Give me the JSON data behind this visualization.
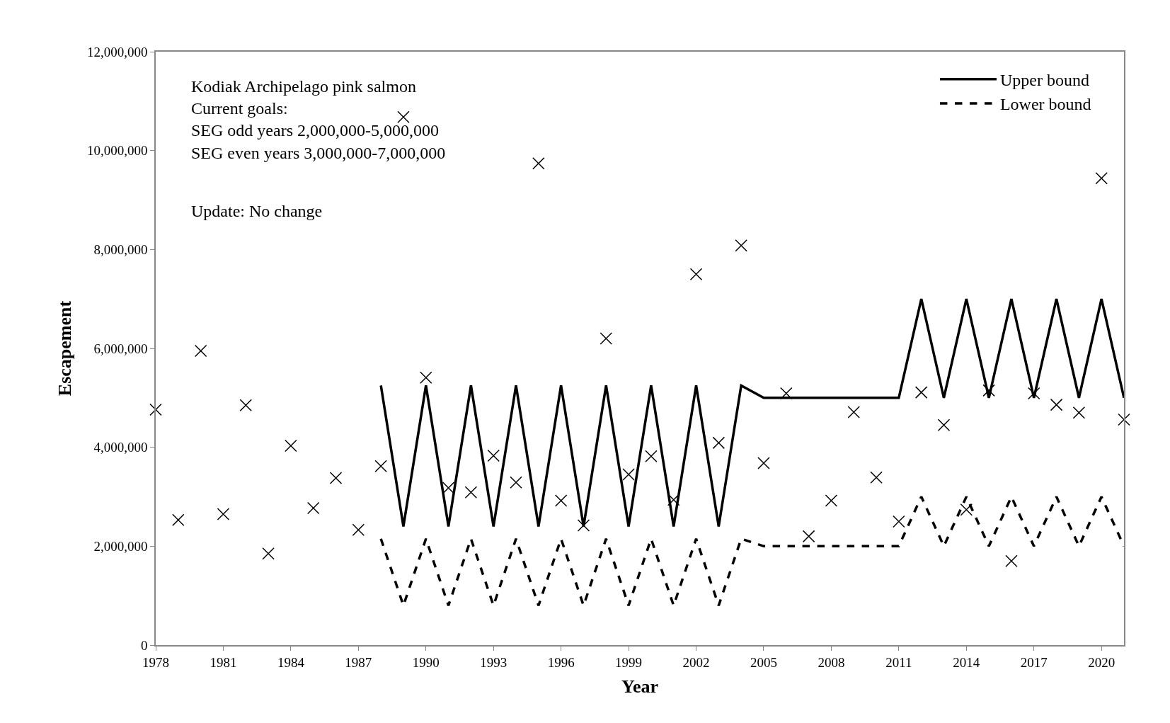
{
  "chart_data": {
    "type": "scatter",
    "xlabel": "Year",
    "ylabel": "Escapement",
    "x": [
      1978,
      1979,
      1980,
      1981,
      1982,
      1983,
      1984,
      1985,
      1986,
      1987,
      1988,
      1989,
      1990,
      1991,
      1992,
      1993,
      1994,
      1995,
      1996,
      1997,
      1998,
      1999,
      2000,
      2001,
      2002,
      2003,
      2004,
      2005,
      2006,
      2007,
      2008,
      2009,
      2010,
      2011,
      2012,
      2013,
      2014,
      2015,
      2016,
      2017,
      2018,
      2019,
      2020,
      2021
    ],
    "series": [
      {
        "color": "#000000",
        "marker": "cross",
        "values": [
          4760000,
          2530000,
          5950000,
          2650000,
          4850000,
          1850000,
          4030000,
          2770000,
          3380000,
          2330000,
          3620000,
          10680000,
          5410000,
          3180000,
          3090000,
          3830000,
          3290000,
          9740000,
          2920000,
          2420000,
          6200000,
          3450000,
          3820000,
          2940000,
          7500000,
          4090000,
          8080000,
          3680000,
          5090000,
          2200000,
          2920000,
          4710000,
          3390000,
          2500000,
          5110000,
          4450000,
          2740000,
          5150000,
          1700000,
          5090000,
          4860000,
          4700000,
          9440000,
          4560000
        ]
      },
      {
        "type": "line",
        "name": "Upper bound",
        "color": "#000000",
        "line_style": "solid",
        "marker": "none",
        "values": [
          null,
          null,
          null,
          null,
          null,
          null,
          null,
          null,
          null,
          null,
          5250000,
          2400000,
          5250000,
          2400000,
          5250000,
          2400000,
          5250000,
          2400000,
          5250000,
          2400000,
          5250000,
          2400000,
          5250000,
          2400000,
          5250000,
          2400000,
          5250000,
          5000000,
          5000000,
          5000000,
          5000000,
          5000000,
          5000000,
          5000000,
          7000000,
          5000000,
          7000000,
          5000000,
          7000000,
          5000000,
          7000000,
          5000000,
          7000000,
          5000000
        ]
      },
      {
        "type": "line",
        "name": "Lower bound",
        "color": "#000000",
        "line_style": "dashed",
        "marker": "none",
        "values": [
          null,
          null,
          null,
          null,
          null,
          null,
          null,
          null,
          null,
          null,
          2150000,
          800000,
          2150000,
          800000,
          2150000,
          800000,
          2150000,
          800000,
          2150000,
          800000,
          2150000,
          800000,
          2150000,
          800000,
          2150000,
          800000,
          2150000,
          2000000,
          2000000,
          2000000,
          2000000,
          2000000,
          2000000,
          2000000,
          3000000,
          2000000,
          3000000,
          2000000,
          3000000,
          2000000,
          3000000,
          2000000,
          3000000,
          2000000
        ]
      }
    ],
    "xlim": [
      1978,
      2021
    ],
    "xticks": [
      1978,
      1981,
      1984,
      1987,
      1990,
      1993,
      1996,
      1999,
      2002,
      2005,
      2008,
      2011,
      2014,
      2017,
      2020
    ],
    "ylim": [
      0,
      12000000
    ],
    "yticks": [
      {
        "value": 0,
        "label": "0"
      },
      {
        "value": 2000000,
        "label": "2,000,000"
      },
      {
        "value": 4000000,
        "label": "4,000,000"
      },
      {
        "value": 6000000,
        "label": "6,000,000"
      },
      {
        "value": 8000000,
        "label": "8,000,000"
      },
      {
        "value": 10000000,
        "label": "10,000,000"
      },
      {
        "value": 12000000,
        "label": "12,000,000"
      }
    ],
    "grid": false,
    "legend": "top right",
    "annotations": [
      "Kodiak Archipelago pink salmon\nCurrent goals:\nSEG odd years 2,000,000-5,000,000\nSEG even years 3,000,000-7,000,000",
      "Update: No change"
    ]
  }
}
